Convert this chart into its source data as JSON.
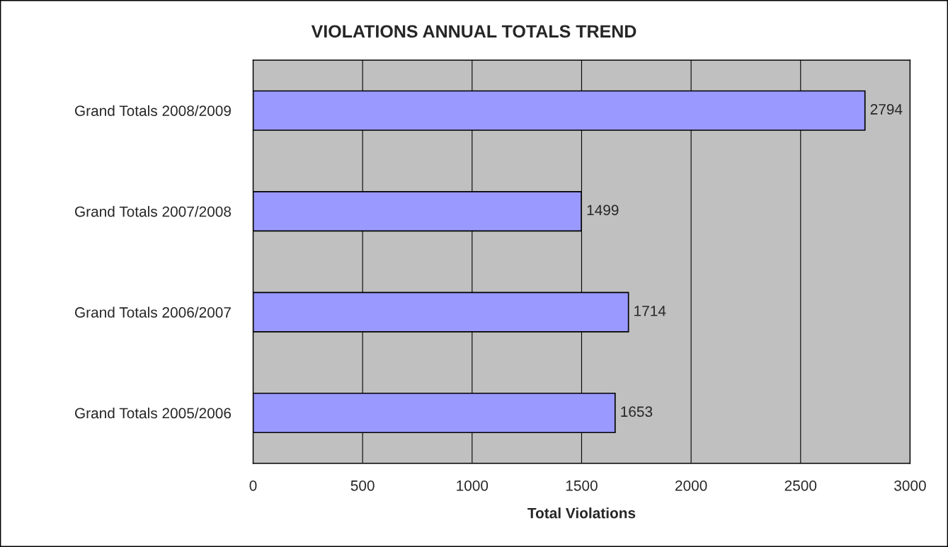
{
  "chart_data": {
    "type": "bar",
    "orientation": "horizontal",
    "title": "VIOLATIONS ANNUAL TOTALS TREND",
    "xlabel": "Total Violations",
    "categories": [
      "Grand Totals 2008/2009",
      "Grand Totals 2007/2008",
      "Grand Totals 2006/2007",
      "Grand Totals 2005/2006"
    ],
    "values": [
      2794,
      1499,
      1714,
      1653
    ],
    "color": "#9999ff",
    "xlim": [
      0,
      3000
    ],
    "xticks": [
      0,
      500,
      1000,
      1500,
      2000,
      2500,
      3000
    ],
    "grid": "x",
    "data_labels": true,
    "legend": false
  }
}
